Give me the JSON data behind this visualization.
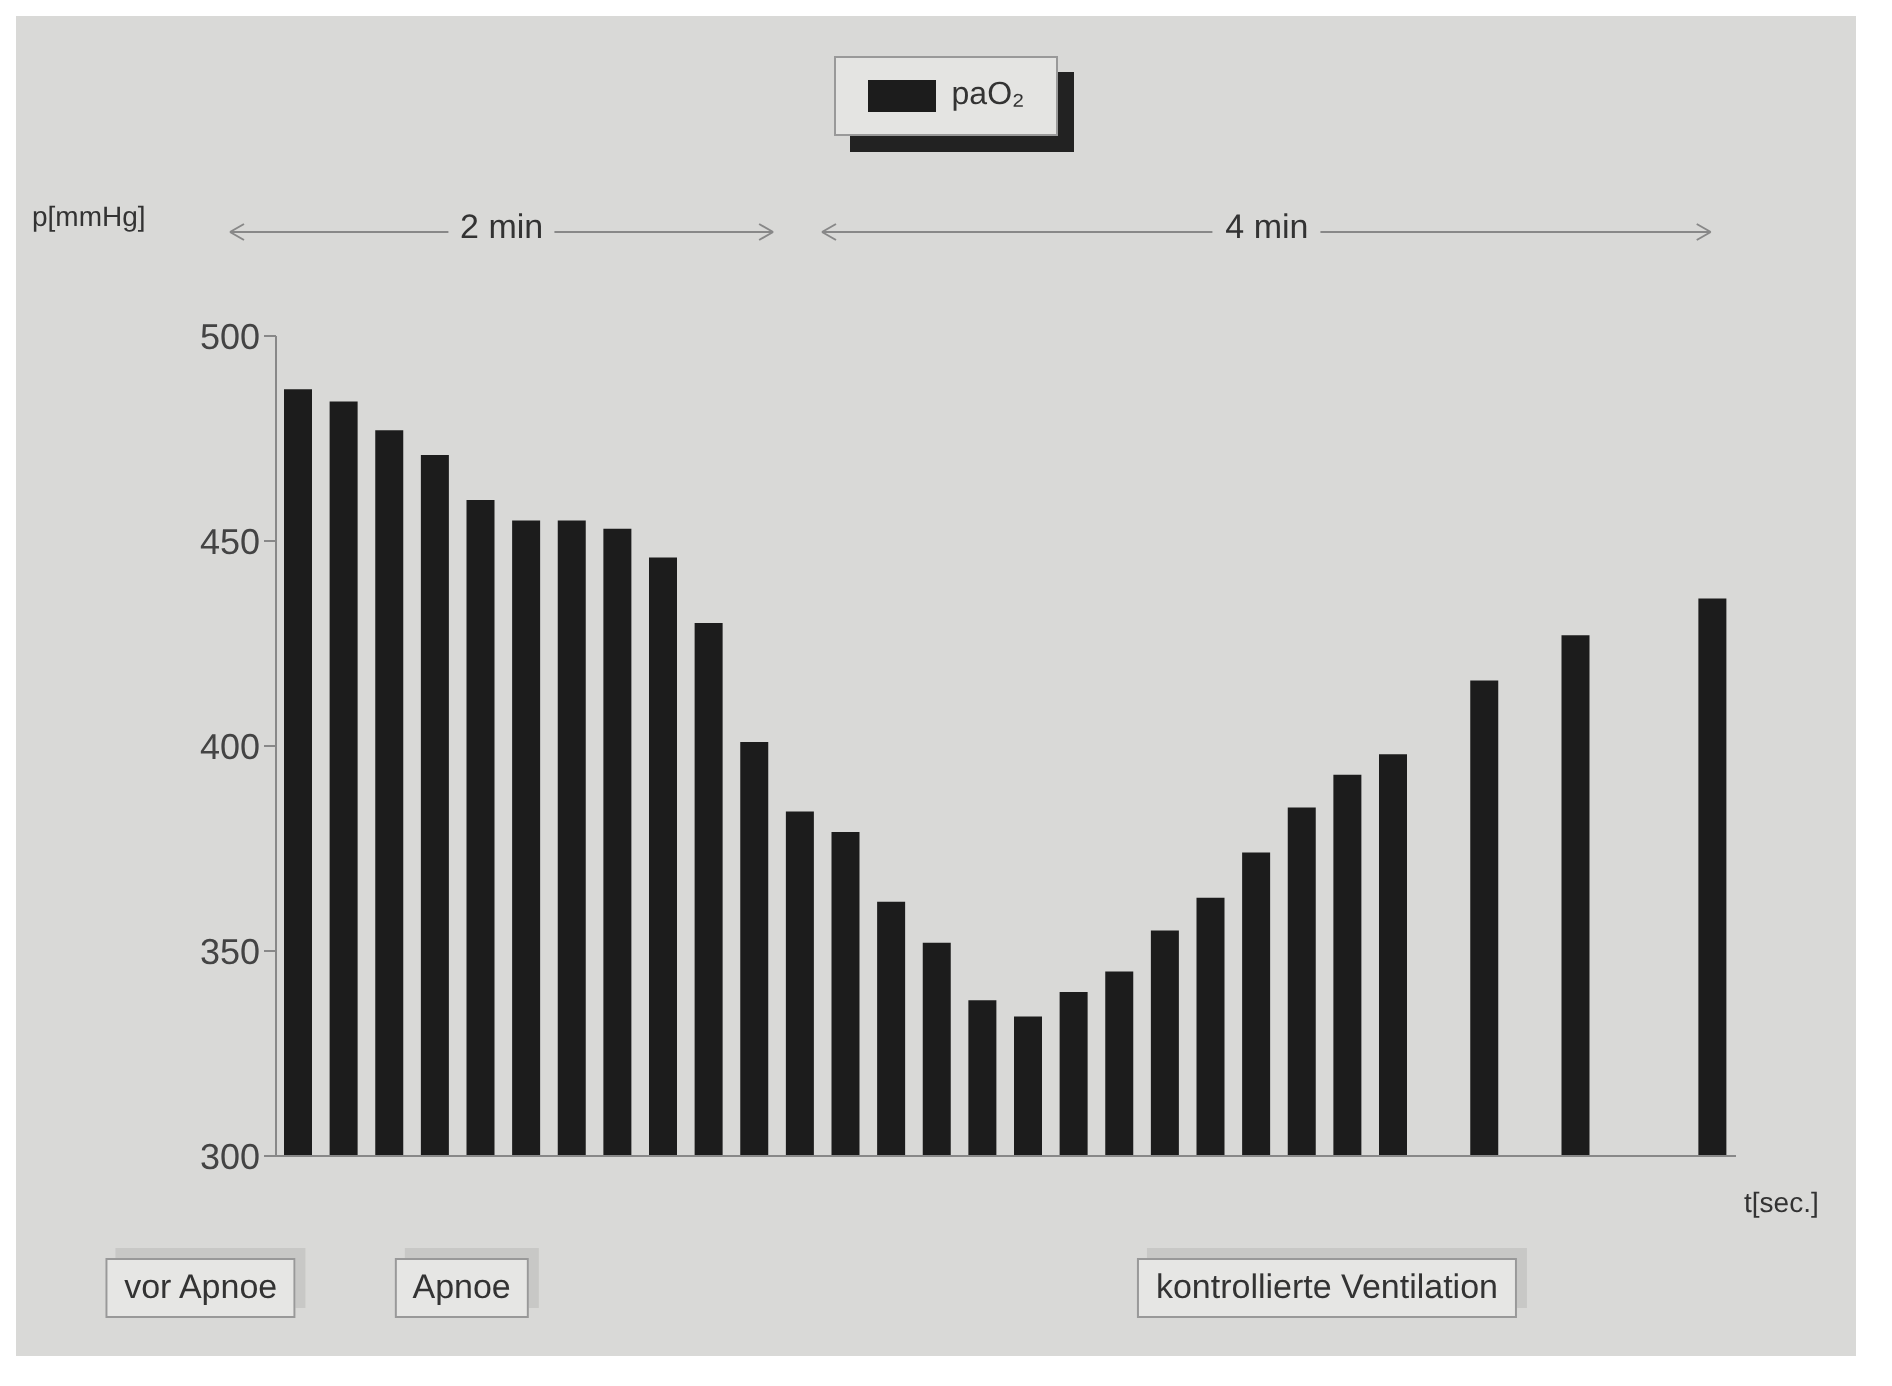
{
  "chart_data": {
    "type": "bar",
    "ylabel": "p[mmHg]",
    "xlabel": "t[sec.]",
    "categories": [
      null,
      null,
      null,
      null,
      null,
      null,
      null,
      null,
      null,
      null,
      null,
      null,
      null,
      null,
      null,
      null,
      null,
      null,
      null,
      null,
      null,
      null,
      null,
      null,
      null,
      null,
      null,
      null,
      null,
      null,
      null,
      null
    ],
    "series": [
      {
        "name": "paO₂",
        "color": "#1c1c1c",
        "values": [
          487,
          484,
          477,
          471,
          460,
          455,
          455,
          453,
          446,
          430,
          401,
          384,
          379,
          362,
          352,
          338,
          334,
          340,
          345,
          355,
          363,
          374,
          385,
          393,
          398,
          null,
          416,
          null,
          427,
          null,
          null,
          436
        ]
      }
    ],
    "ylim": [
      300,
      500
    ],
    "yticks": [
      300,
      350,
      400,
      450,
      500
    ],
    "grid": false,
    "legend": "top",
    "annotations": [
      "2 min",
      "4 min",
      "vor Apnoe",
      "Apnoe",
      "kontrollierte Ventilation"
    ]
  }
}
